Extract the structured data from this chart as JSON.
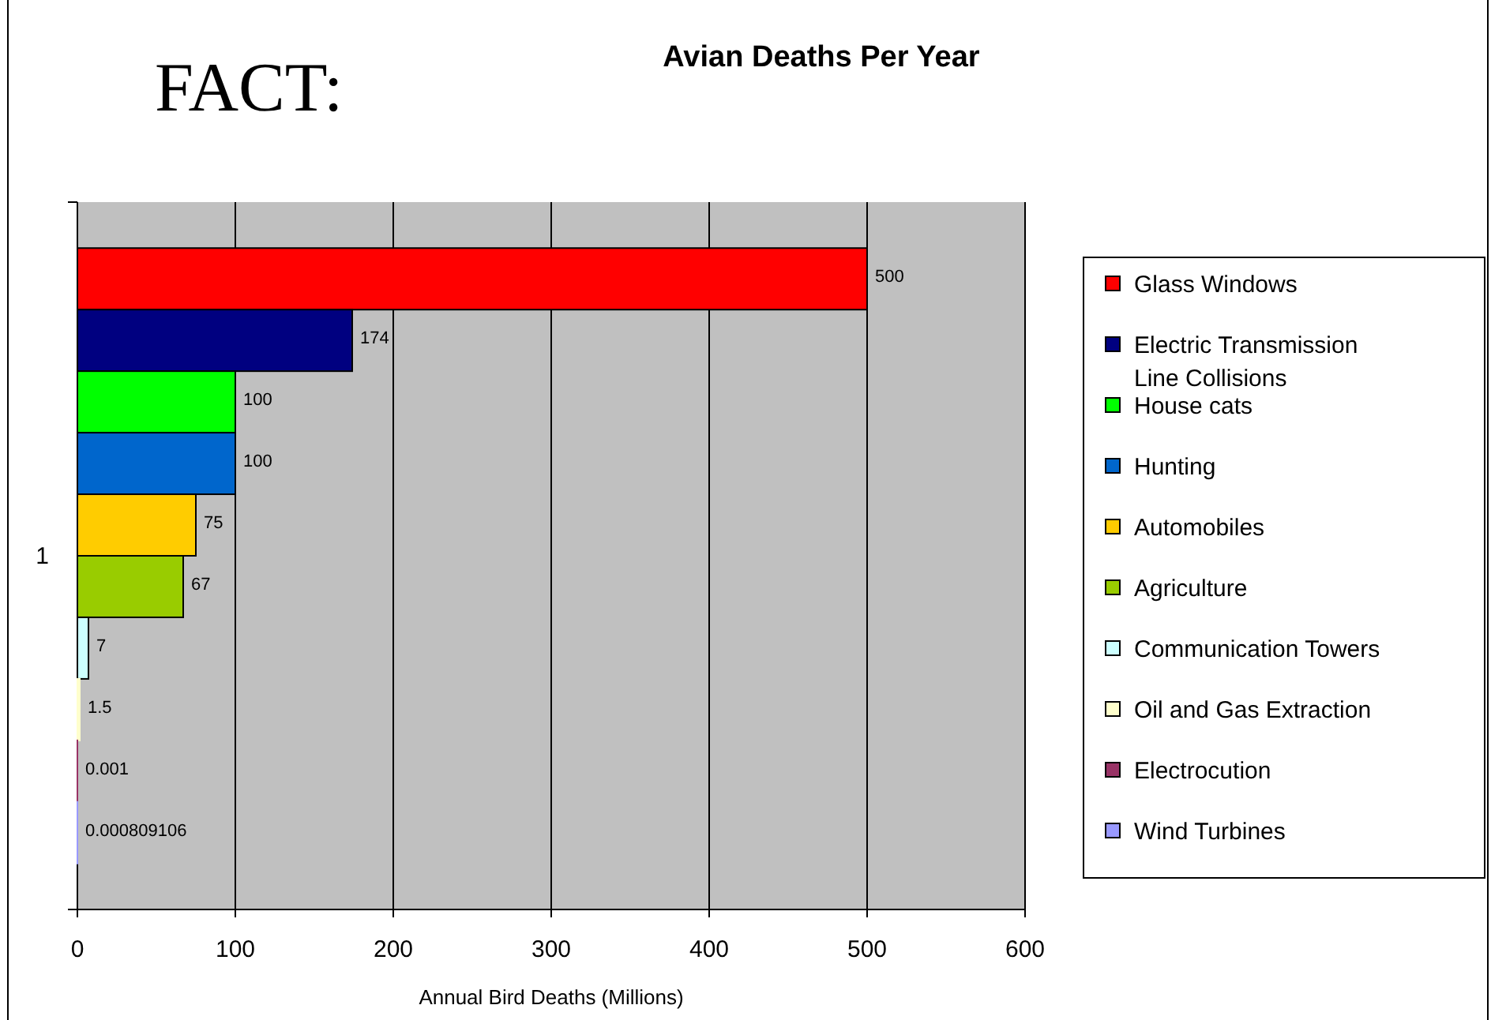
{
  "chart_data": {
    "type": "bar",
    "orientation": "horizontal",
    "title": "Avian Deaths Per Year",
    "annotations": [
      "FACT:"
    ],
    "xlabel": "Annual Bird Deaths (Millions)",
    "categories": [
      "1"
    ],
    "series": [
      {
        "name": "Glass Windows",
        "color": "#ff0000",
        "values": [
          500
        ]
      },
      {
        "name": "Electric Transmission Line Collisions",
        "color": "#000080",
        "values": [
          174
        ]
      },
      {
        "name": "House cats",
        "color": "#00ff00",
        "values": [
          100
        ]
      },
      {
        "name": "Hunting",
        "color": "#0066cc",
        "values": [
          100
        ]
      },
      {
        "name": "Automobiles",
        "color": "#ffcc00",
        "values": [
          75
        ]
      },
      {
        "name": "Agriculture",
        "color": "#99cc00",
        "values": [
          67
        ]
      },
      {
        "name": "Communication Towers",
        "color": "#ccffff",
        "values": [
          7
        ]
      },
      {
        "name": "Oil and Gas Extraction",
        "color": "#ffffcc",
        "values": [
          1.5
        ]
      },
      {
        "name": "Electrocution",
        "color": "#993366",
        "values": [
          0.001
        ]
      },
      {
        "name": "Wind Turbines",
        "color": "#9999ff",
        "values": [
          0.000809106
        ]
      }
    ],
    "xlim": [
      0,
      600
    ],
    "xticks": [
      0,
      100,
      200,
      300,
      400,
      500,
      600
    ],
    "grid": "x",
    "legend": "right",
    "data_labels": true
  }
}
